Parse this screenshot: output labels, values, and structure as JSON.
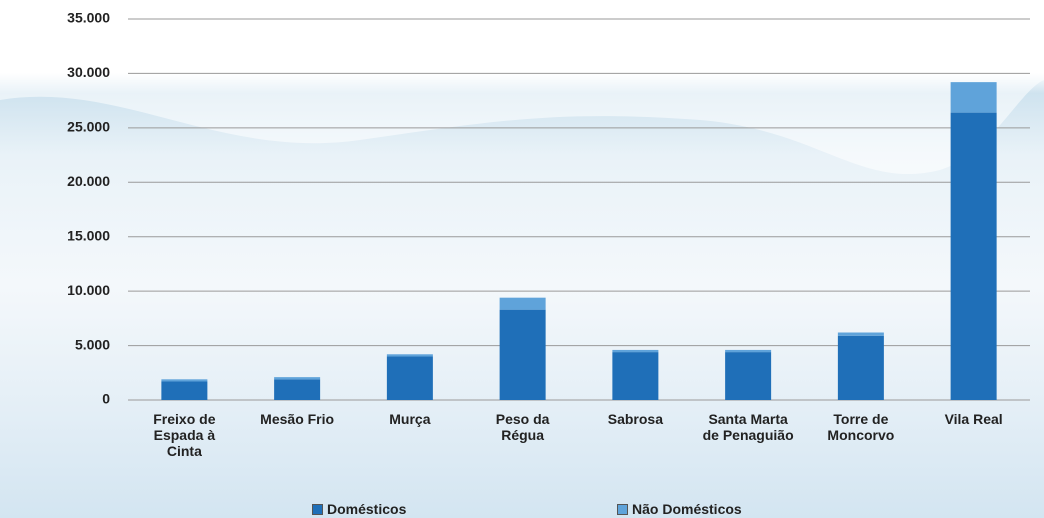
{
  "chart_data": {
    "type": "stacked-bar",
    "categories": [
      "Freixo de Espada à Cinta",
      "Mesão Frio",
      "Murça",
      "Peso da Régua",
      "Sabrosa",
      "Santa Marta de Penaguião",
      "Torre de Moncorvo",
      "Vila Real"
    ],
    "series": [
      {
        "name": "Domésticos",
        "color": "#1f6fb8",
        "values": [
          1700,
          1900,
          4000,
          8300,
          4400,
          4400,
          5900,
          26400
        ]
      },
      {
        "name": "Não Domésticos",
        "color": "#5fa3da",
        "values": [
          200,
          200,
          200,
          1100,
          200,
          200,
          300,
          2800
        ]
      }
    ],
    "ylim": [
      0,
      35000
    ],
    "yticks": [
      0,
      {
        "value": 5000,
        "label": "5.000"
      },
      {
        "value": 10000,
        "label": "10.000"
      },
      {
        "value": 15000,
        "label": "15.000"
      },
      {
        "value": 20000,
        "label": "20.000"
      },
      {
        "value": 25000,
        "label": "25.000"
      },
      {
        "value": 30000,
        "label": "30.000"
      },
      {
        "value": 35000,
        "label": "35.000"
      }
    ],
    "grid": true,
    "legend": "bottom"
  }
}
